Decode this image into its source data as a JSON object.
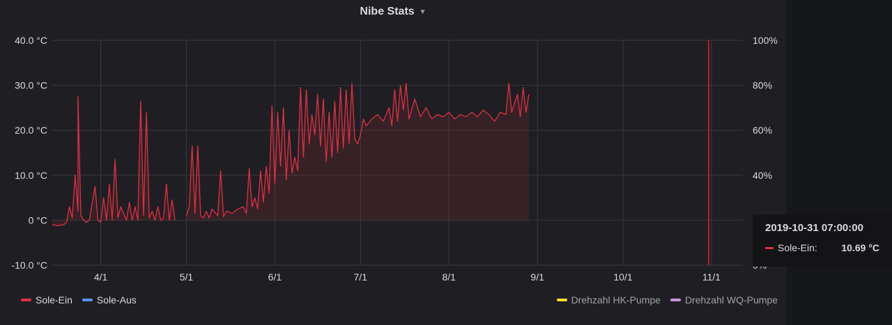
{
  "panel": {
    "title": "Nibe Stats"
  },
  "tooltip": {
    "time": "2019-10-31 07:00:00",
    "series": "Sole-Ein:",
    "value": "10.69 °C"
  },
  "legend": {
    "left": [
      {
        "name": "Sole-Ein",
        "color": "#e02f44"
      },
      {
        "name": "Sole-Aus",
        "color": "#5794f2"
      }
    ],
    "right": [
      {
        "name": "Drehzahl HK-Pumpe",
        "color": "#fade2a"
      },
      {
        "name": "Drehzahl WQ-Pumpe",
        "color": "#ca95e5"
      }
    ]
  },
  "colors": {
    "sole_ein": "#e02f44",
    "grid": "#3a3b3f",
    "background": "#1f1f23"
  },
  "chart_data": {
    "type": "area",
    "title": "Nibe Stats",
    "x_range": [
      "2019-03-15",
      "2019-11-12"
    ],
    "y_left": {
      "ylim": [
        -10,
        40
      ],
      "ticks": [
        "-10.0 °C",
        "0 °C",
        "10.0 °C",
        "20.0 °C",
        "30.0 °C",
        "40.0 °C"
      ]
    },
    "y_right": {
      "ylim": [
        0,
        100
      ],
      "ticks": [
        "0%",
        "40%",
        "60%",
        "80%",
        "100%"
      ]
    },
    "x_ticks": [
      {
        "label": "4/1",
        "date": "2019-04-01"
      },
      {
        "label": "5/1",
        "date": "2019-05-01"
      },
      {
        "label": "6/1",
        "date": "2019-06-01"
      },
      {
        "label": "7/1",
        "date": "2019-07-01"
      },
      {
        "label": "8/1",
        "date": "2019-08-01"
      },
      {
        "label": "9/1",
        "date": "2019-09-01"
      },
      {
        "label": "10/1",
        "date": "2019-10-01"
      },
      {
        "label": "11/1",
        "date": "2019-11-01"
      }
    ],
    "grid": true,
    "legend": "bottom",
    "crosshair": "2019-10-31",
    "series": [
      {
        "name": "Sole-Ein",
        "color": "#e02f44",
        "points": [
          [
            "2019-03-15",
            -1.0
          ],
          [
            "2019-03-17",
            -1.2
          ],
          [
            "2019-03-19",
            -1.0
          ],
          [
            "2019-03-20",
            -0.5
          ],
          [
            "2019-03-21",
            3.0
          ],
          [
            "2019-03-22",
            0.5
          ],
          [
            "2019-03-23",
            10.0
          ],
          [
            "2019-03-24",
            2.0
          ],
          [
            "2019-03-24",
            27.5
          ],
          [
            "2019-03-25",
            1.0
          ],
          [
            "2019-03-26",
            0.0
          ],
          [
            "2019-03-27",
            -0.5
          ],
          [
            "2019-03-28",
            0.0
          ],
          [
            "2019-03-30",
            7.5
          ],
          [
            "2019-03-31",
            0.0
          ],
          [
            "2019-04-01",
            -0.5
          ],
          [
            "2019-04-02",
            5.0
          ],
          [
            "2019-04-03",
            0.0
          ],
          [
            "2019-04-04",
            8.0
          ],
          [
            "2019-04-05",
            0.0
          ],
          [
            "2019-04-06",
            13.5
          ],
          [
            "2019-04-07",
            0.5
          ],
          [
            "2019-04-08",
            3.0
          ],
          [
            "2019-04-10",
            0.0
          ],
          [
            "2019-04-11",
            4.0
          ],
          [
            "2019-04-12",
            0.0
          ],
          [
            "2019-04-13",
            3.0
          ],
          [
            "2019-04-14",
            0.0
          ],
          [
            "2019-04-15",
            26.5
          ],
          [
            "2019-04-16",
            1.0
          ],
          [
            "2019-04-17",
            24.0
          ],
          [
            "2019-04-18",
            0.5
          ],
          [
            "2019-04-19",
            2.0
          ],
          [
            "2019-04-20",
            0.0
          ],
          [
            "2019-04-21",
            3.0
          ],
          [
            "2019-04-22",
            0.0
          ],
          [
            "2019-04-23",
            0.5
          ],
          [
            "2019-04-24",
            8.0
          ],
          [
            "2019-04-25",
            0.0
          ],
          [
            "2019-04-26",
            4.5
          ],
          [
            "2019-04-27",
            0.0
          ],
          null,
          [
            "2019-05-01",
            1.0
          ],
          [
            "2019-05-02",
            3.0
          ],
          [
            "2019-05-03",
            16.5
          ],
          [
            "2019-05-04",
            1.5
          ],
          [
            "2019-05-05",
            16.5
          ],
          [
            "2019-05-06",
            1.0
          ],
          [
            "2019-05-07",
            0.5
          ],
          [
            "2019-05-08",
            2.0
          ],
          [
            "2019-05-09",
            0.5
          ],
          [
            "2019-05-10",
            2.5
          ],
          [
            "2019-05-12",
            1.0
          ],
          [
            "2019-05-13",
            11.0
          ],
          [
            "2019-05-14",
            0.8
          ],
          [
            "2019-05-15",
            2.0
          ],
          [
            "2019-05-17",
            1.5
          ],
          [
            "2019-05-19",
            2.5
          ],
          [
            "2019-05-21",
            3.0
          ],
          [
            "2019-05-22",
            1.5
          ],
          [
            "2019-05-23",
            11.5
          ],
          [
            "2019-05-24",
            3.0
          ],
          [
            "2019-05-25",
            5.0
          ],
          [
            "2019-05-26",
            2.5
          ],
          [
            "2019-05-27",
            11.0
          ],
          [
            "2019-05-28",
            4.0
          ],
          [
            "2019-05-29",
            12.0
          ],
          [
            "2019-05-30",
            6.0
          ],
          [
            "2019-05-31",
            25.5
          ],
          [
            "2019-06-01",
            8.0
          ],
          [
            "2019-06-02",
            24.0
          ],
          [
            "2019-06-03",
            12.0
          ],
          [
            "2019-06-04",
            25.0
          ],
          [
            "2019-06-05",
            9.0
          ],
          [
            "2019-06-06",
            20.0
          ],
          [
            "2019-06-07",
            10.5
          ],
          [
            "2019-06-08",
            14.0
          ],
          [
            "2019-06-09",
            11.0
          ],
          [
            "2019-06-10",
            29.5
          ],
          [
            "2019-06-11",
            14.0
          ],
          [
            "2019-06-12",
            29.0
          ],
          [
            "2019-06-13",
            17.0
          ],
          [
            "2019-06-14",
            23.5
          ],
          [
            "2019-06-15",
            19.0
          ],
          [
            "2019-06-16",
            28.0
          ],
          [
            "2019-06-17",
            16.5
          ],
          [
            "2019-06-18",
            27.0
          ],
          [
            "2019-06-19",
            13.0
          ],
          [
            "2019-06-20",
            24.0
          ],
          [
            "2019-06-21",
            14.0
          ],
          [
            "2019-06-22",
            26.5
          ],
          [
            "2019-06-23",
            15.0
          ],
          [
            "2019-06-24",
            29.5
          ],
          [
            "2019-06-25",
            16.0
          ],
          [
            "2019-06-26",
            29.0
          ],
          [
            "2019-06-27",
            17.0
          ],
          [
            "2019-06-28",
            30.5
          ],
          [
            "2019-06-29",
            18.0
          ],
          [
            "2019-06-30",
            17.0
          ],
          [
            "2019-07-01",
            19.0
          ],
          [
            "2019-07-02",
            22.5
          ],
          [
            "2019-07-03",
            21.0
          ],
          [
            "2019-07-05",
            22.5
          ],
          [
            "2019-07-07",
            23.5
          ],
          [
            "2019-07-09",
            22.0
          ],
          [
            "2019-07-11",
            25.0
          ],
          [
            "2019-07-12",
            21.0
          ],
          [
            "2019-07-13",
            29.0
          ],
          [
            "2019-07-14",
            22.0
          ],
          [
            "2019-07-15",
            30.0
          ],
          [
            "2019-07-16",
            24.5
          ],
          [
            "2019-07-17",
            30.5
          ],
          [
            "2019-07-18",
            22.5
          ],
          [
            "2019-07-20",
            27.0
          ],
          [
            "2019-07-22",
            23.0
          ],
          [
            "2019-07-24",
            25.0
          ],
          [
            "2019-07-26",
            22.5
          ],
          [
            "2019-07-28",
            23.5
          ],
          [
            "2019-07-30",
            23.0
          ],
          [
            "2019-08-01",
            24.0
          ],
          [
            "2019-08-03",
            22.5
          ],
          [
            "2019-08-05",
            23.5
          ],
          [
            "2019-08-07",
            23.0
          ],
          [
            "2019-08-09",
            24.0
          ],
          [
            "2019-08-11",
            23.0
          ],
          [
            "2019-08-13",
            24.5
          ],
          [
            "2019-08-15",
            23.5
          ],
          [
            "2019-08-17",
            22.0
          ],
          [
            "2019-08-19",
            24.0
          ],
          [
            "2019-08-21",
            23.5
          ],
          [
            "2019-08-22",
            30.5
          ],
          [
            "2019-08-23",
            24.0
          ],
          [
            "2019-08-25",
            28.0
          ],
          [
            "2019-08-26",
            23.0
          ],
          [
            "2019-08-27",
            29.5
          ],
          [
            "2019-08-28",
            24.0
          ],
          [
            "2019-08-29",
            28.0
          ]
        ]
      }
    ]
  }
}
